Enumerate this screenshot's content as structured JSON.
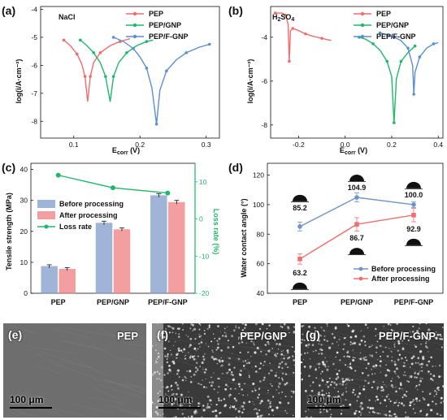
{
  "chart_data": [
    {
      "id": "a",
      "type": "line",
      "panel_label": "(a)",
      "inset_label": "NaCl",
      "xlabel_main": "E",
      "xlabel_sub": "corr",
      "xlabel_unit": " (V)",
      "ylabel": "log(i/A·cm⁻²)",
      "xlim": [
        0.05,
        0.32
      ],
      "ylim": [
        -8.6,
        -3.9
      ],
      "xticks": [
        0.1,
        0.2,
        0.3
      ],
      "yticks": [
        -8,
        -7,
        -6,
        -5,
        -4
      ],
      "legend_position": "top-right",
      "series": [
        {
          "name": "PEP",
          "color": "#f26c6c",
          "ecorr": 0.121,
          "minlog": -7.3,
          "points": [
            [
              0.085,
              -5.1
            ],
            [
              0.095,
              -5.3
            ],
            [
              0.105,
              -5.6
            ],
            [
              0.112,
              -5.95
            ],
            [
              0.117,
              -6.4
            ],
            [
              0.121,
              -7.3
            ],
            [
              0.125,
              -6.4
            ],
            [
              0.13,
              -5.9
            ],
            [
              0.14,
              -5.55
            ],
            [
              0.155,
              -5.3
            ],
            [
              0.17,
              -5.15
            ],
            [
              0.185,
              -5.05
            ]
          ]
        },
        {
          "name": "PEP/GNP",
          "color": "#1fb86a",
          "ecorr": 0.155,
          "minlog": -7.3,
          "points": [
            [
              0.11,
              -5.1
            ],
            [
              0.12,
              -5.3
            ],
            [
              0.13,
              -5.55
            ],
            [
              0.14,
              -5.9
            ],
            [
              0.148,
              -6.4
            ],
            [
              0.155,
              -7.3
            ],
            [
              0.16,
              -6.4
            ],
            [
              0.168,
              -5.9
            ],
            [
              0.18,
              -5.55
            ],
            [
              0.195,
              -5.3
            ],
            [
              0.21,
              -5.15
            ],
            [
              0.22,
              -5.1
            ]
          ]
        },
        {
          "name": "PEP/F-GNP",
          "color": "#5b8fd1",
          "ecorr": 0.225,
          "minlog": -8.1,
          "points": [
            [
              0.16,
              -5.0
            ],
            [
              0.175,
              -5.15
            ],
            [
              0.19,
              -5.4
            ],
            [
              0.2,
              -5.7
            ],
            [
              0.21,
              -6.1
            ],
            [
              0.218,
              -6.8
            ],
            [
              0.225,
              -8.1
            ],
            [
              0.23,
              -6.9
            ],
            [
              0.24,
              -6.2
            ],
            [
              0.255,
              -5.8
            ],
            [
              0.27,
              -5.55
            ],
            [
              0.29,
              -5.35
            ],
            [
              0.305,
              -5.25
            ]
          ]
        }
      ]
    },
    {
      "id": "b",
      "type": "line",
      "panel_label": "(b)",
      "inset_label_main": "H",
      "inset_label_sub1": "2",
      "inset_label_mid": "SO",
      "inset_label_sub2": "4",
      "xlabel_main": "E",
      "xlabel_sub": "corr",
      "xlabel_unit": " (V)",
      "ylabel": "log(i/A·cm⁻²)",
      "xlim": [
        -0.32,
        0.42
      ],
      "ylim": [
        -8.6,
        -2.6
      ],
      "xticks": [
        -0.2,
        0.0,
        0.2,
        0.4
      ],
      "yticks": [
        -8,
        -6,
        -4
      ],
      "legend_position": "top-right",
      "series": [
        {
          "name": "PEP",
          "color": "#f26c6c",
          "points": [
            [
              -0.3,
              -2.9
            ],
            [
              -0.27,
              -2.9
            ],
            [
              -0.255,
              -3.0
            ],
            [
              -0.245,
              -3.4
            ],
            [
              -0.24,
              -5.1
            ],
            [
              -0.235,
              -3.7
            ],
            [
              -0.225,
              -3.6
            ],
            [
              -0.2,
              -3.7
            ],
            [
              -0.17,
              -3.85
            ],
            [
              -0.14,
              -3.95
            ],
            [
              -0.1,
              -4.05
            ],
            [
              -0.06,
              -4.15
            ]
          ]
        },
        {
          "name": "PEP/GNP",
          "color": "#1fb86a",
          "points": [
            [
              0.06,
              -4.0
            ],
            [
              0.09,
              -4.1
            ],
            [
              0.12,
              -4.3
            ],
            [
              0.15,
              -4.6
            ],
            [
              0.18,
              -5.1
            ],
            [
              0.2,
              -5.8
            ],
            [
              0.21,
              -7.9
            ],
            [
              0.22,
              -5.9
            ],
            [
              0.24,
              -5.1
            ],
            [
              0.27,
              -4.7
            ],
            [
              0.3,
              -4.4
            ]
          ]
        },
        {
          "name": "PEP/F-GNP",
          "color": "#5b8fd1",
          "points": [
            [
              0.15,
              -3.8
            ],
            [
              0.18,
              -3.9
            ],
            [
              0.21,
              -4.0
            ],
            [
              0.24,
              -4.15
            ],
            [
              0.27,
              -4.5
            ],
            [
              0.29,
              -5.3
            ],
            [
              0.295,
              -6.6
            ],
            [
              0.3,
              -5.6
            ],
            [
              0.32,
              -4.9
            ],
            [
              0.35,
              -4.5
            ],
            [
              0.38,
              -4.3
            ],
            [
              0.4,
              -4.25
            ]
          ]
        }
      ]
    },
    {
      "id": "c",
      "type": "bar",
      "panel_label": "(c)",
      "categories": [
        "PEP",
        "PEP/GNP",
        "PEP/F-GNP"
      ],
      "ylabel": "Tensile strength (MPa)",
      "y2label": "Loss rate (%)",
      "ylim": [
        0,
        42
      ],
      "y2lim": [
        -20,
        15
      ],
      "yticks": [
        0,
        10,
        20,
        30,
        40
      ],
      "y2ticks": [
        -20,
        -10,
        0,
        10
      ],
      "legend_position": "middle-left",
      "series": [
        {
          "name": "Before processing",
          "color": "#7f9cc9",
          "values": [
            8.7,
            22.7,
            31.6
          ],
          "errors": [
            0.5,
            0.6,
            0.6
          ]
        },
        {
          "name": "After processing",
          "color": "#f07f7f",
          "values": [
            7.8,
            20.6,
            29.4
          ],
          "errors": [
            0.5,
            0.5,
            0.6
          ]
        }
      ],
      "line_series": {
        "name": "Loss rate",
        "color": "#1fb86a",
        "values": [
          11.8,
          8.4,
          7.0
        ]
      }
    },
    {
      "id": "d",
      "type": "line",
      "panel_label": "(d)",
      "categories": [
        "PEP",
        "PEP/GNP",
        "PEP/F-GNP"
      ],
      "ylabel": "Water contact angle (°)",
      "ylim": [
        40,
        128
      ],
      "yticks": [
        40,
        60,
        80,
        100,
        120
      ],
      "legend_position": "bottom-right",
      "series": [
        {
          "name": "Before processing",
          "color": "#6f95c8",
          "values": [
            85.2,
            104.9,
            100.0
          ],
          "labels": [
            "85.2",
            "104.9",
            "100.0"
          ],
          "errors": [
            3,
            3,
            2
          ]
        },
        {
          "name": "After processing",
          "color": "#f07070",
          "values": [
            63.2,
            86.7,
            92.9
          ],
          "labels": [
            "63.2",
            "86.7",
            "92.9"
          ],
          "errors": [
            3.5,
            4.5,
            4.5
          ]
        }
      ]
    }
  ],
  "sem_panels": [
    {
      "panel_label": "(e)",
      "title": "PEP",
      "scale": "100 μm",
      "density": 0.0
    },
    {
      "panel_label": "(f)",
      "title": "PEP/GNP",
      "scale": "100 μm",
      "density": 1.0
    },
    {
      "panel_label": "(g)",
      "title": "PEP/F-GNP",
      "scale": "100 μm",
      "density": 1.0
    }
  ]
}
